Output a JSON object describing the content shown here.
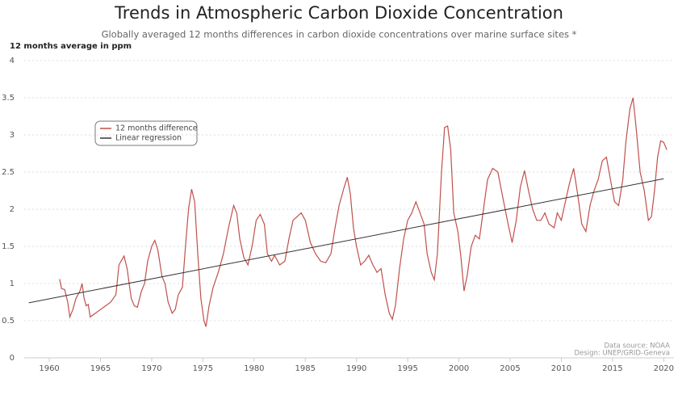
{
  "chart_data": {
    "type": "line",
    "title": "Trends in Atmospheric Carbon Dioxide Concentration",
    "subtitle": "Globally averaged 12 months differences in carbon dioxide concentrations over marine surface sites *",
    "y_label": "12 months average in ppm",
    "source": [
      "Data source: NOAA",
      "Design: UNEP/GRID-Geneva"
    ],
    "xlim": [
      1957.55,
      2021.0
    ],
    "ylim": [
      0,
      4
    ],
    "xticks": [
      1960,
      1965,
      1970,
      1975,
      1980,
      1985,
      1990,
      1995,
      2000,
      2005,
      2010,
      2015,
      2020
    ],
    "yticks": [
      0,
      0.5,
      1,
      1.5,
      2,
      2.5,
      3,
      3.5,
      4
    ],
    "grid": true,
    "series": [
      {
        "name": "12 months difference",
        "color": "#c0504d",
        "x": [
          1961.0,
          1961.2,
          1961.5,
          1961.8,
          1962.0,
          1962.3,
          1962.6,
          1963.0,
          1963.2,
          1963.4,
          1963.6,
          1963.8,
          1964.0,
          1964.3,
          1965.0,
          1966.0,
          1966.5,
          1966.8,
          1967.0,
          1967.3,
          1967.6,
          1968.0,
          1968.3,
          1968.6,
          1969.0,
          1969.3,
          1969.6,
          1970.0,
          1970.3,
          1970.6,
          1971.0,
          1971.3,
          1971.6,
          1972.0,
          1972.3,
          1972.6,
          1973.0,
          1973.3,
          1973.6,
          1973.9,
          1974.2,
          1974.5,
          1974.8,
          1975.1,
          1975.3,
          1975.6,
          1976.0,
          1976.5,
          1977.0,
          1977.5,
          1978.0,
          1978.3,
          1978.6,
          1979.0,
          1979.4,
          1979.8,
          1980.2,
          1980.6,
          1981.0,
          1981.3,
          1981.7,
          1982.0,
          1982.5,
          1983.0,
          1983.4,
          1983.8,
          1984.2,
          1984.6,
          1985.0,
          1985.5,
          1986.0,
          1986.5,
          1987.0,
          1987.5,
          1987.9,
          1988.3,
          1988.8,
          1989.1,
          1989.4,
          1989.7,
          1990.0,
          1990.4,
          1990.8,
          1991.2,
          1991.6,
          1992.0,
          1992.4,
          1992.8,
          1993.2,
          1993.5,
          1993.8,
          1994.2,
          1994.6,
          1995.0,
          1995.4,
          1995.8,
          1996.2,
          1996.6,
          1996.9,
          1997.3,
          1997.6,
          1997.9,
          1998.3,
          1998.6,
          1998.9,
          1999.2,
          1999.5,
          1999.9,
          2000.2,
          2000.5,
          2000.8,
          2001.2,
          2001.6,
          2002.0,
          2002.4,
          2002.8,
          2003.3,
          2003.8,
          2004.3,
          2004.8,
          2005.2,
          2005.6,
          2006.0,
          2006.4,
          2006.8,
          2007.2,
          2007.6,
          2008.0,
          2008.4,
          2008.8,
          2009.3,
          2009.6,
          2010.0,
          2010.4,
          2010.8,
          2011.2,
          2011.6,
          2012.0,
          2012.4,
          2012.8,
          2013.2,
          2013.6,
          2014.0,
          2014.4,
          2014.8,
          2015.2,
          2015.6,
          2016.0,
          2016.3,
          2016.7,
          2017.0,
          2017.3,
          2017.7,
          2018.1,
          2018.5,
          2018.8,
          2019.1,
          2019.4,
          2019.7,
          2020.0,
          2020.3
        ],
        "values": [
          1.06,
          0.93,
          0.92,
          0.75,
          0.55,
          0.65,
          0.8,
          0.9,
          1.0,
          0.8,
          0.7,
          0.72,
          0.55,
          0.58,
          0.65,
          0.75,
          0.85,
          1.25,
          1.3,
          1.37,
          1.2,
          0.8,
          0.7,
          0.68,
          0.9,
          1.0,
          1.3,
          1.5,
          1.58,
          1.45,
          1.1,
          1.0,
          0.75,
          0.6,
          0.65,
          0.85,
          0.95,
          1.5,
          2.0,
          2.27,
          2.1,
          1.4,
          0.8,
          0.5,
          0.42,
          0.7,
          0.95,
          1.15,
          1.4,
          1.75,
          2.05,
          1.95,
          1.6,
          1.35,
          1.25,
          1.5,
          1.85,
          1.93,
          1.8,
          1.4,
          1.3,
          1.38,
          1.25,
          1.3,
          1.6,
          1.85,
          1.9,
          1.95,
          1.85,
          1.55,
          1.4,
          1.3,
          1.28,
          1.4,
          1.75,
          2.05,
          2.3,
          2.43,
          2.2,
          1.75,
          1.5,
          1.25,
          1.3,
          1.38,
          1.25,
          1.15,
          1.2,
          0.85,
          0.6,
          0.52,
          0.7,
          1.2,
          1.6,
          1.85,
          1.95,
          2.1,
          1.95,
          1.8,
          1.4,
          1.15,
          1.05,
          1.4,
          2.5,
          3.1,
          3.12,
          2.8,
          1.95,
          1.7,
          1.35,
          0.9,
          1.1,
          1.5,
          1.65,
          1.6,
          2.0,
          2.4,
          2.55,
          2.5,
          2.15,
          1.8,
          1.55,
          1.85,
          2.3,
          2.52,
          2.25,
          2.0,
          1.85,
          1.85,
          1.95,
          1.8,
          1.75,
          1.95,
          1.85,
          2.1,
          2.35,
          2.55,
          2.2,
          1.8,
          1.7,
          2.05,
          2.25,
          2.4,
          2.65,
          2.7,
          2.4,
          2.1,
          2.05,
          2.4,
          2.9,
          3.35,
          3.5,
          3.1,
          2.5,
          2.25,
          1.85,
          1.9,
          2.25,
          2.7,
          2.92,
          2.9,
          2.8
        ]
      },
      {
        "name": "Linear regression",
        "color": "#333333",
        "x": [
          1958,
          2020
        ],
        "values": [
          0.74,
          2.41
        ]
      }
    ]
  }
}
